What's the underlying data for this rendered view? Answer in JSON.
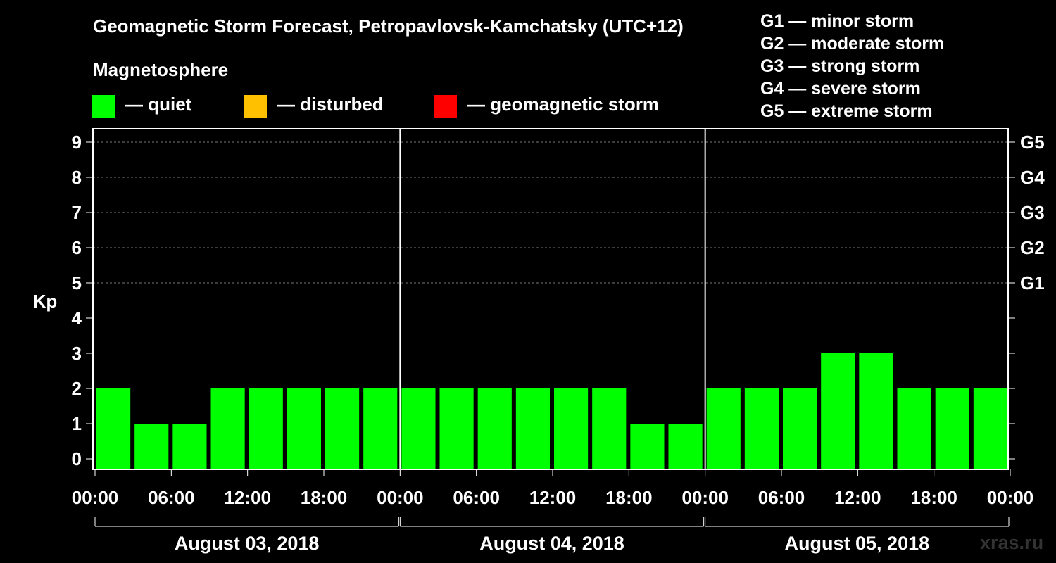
{
  "title": "Geomagnetic Storm Forecast, Petropavlovsk-Kamchatsky (UTC+12)",
  "magnetosphere_label": "Magnetosphere",
  "legend": [
    {
      "label": "— quiet",
      "color": "#00ff00"
    },
    {
      "label": "— disturbed",
      "color": "#ffc000"
    },
    {
      "label": "— geomagnetic storm",
      "color": "#ff0000"
    }
  ],
  "storm_levels": [
    {
      "label": "G1 — minor storm"
    },
    {
      "label": "G2 — moderate storm"
    },
    {
      "label": "G3 — strong storm"
    },
    {
      "label": "G4 — severe storm"
    },
    {
      "label": "G5 — extreme storm"
    }
  ],
  "watermark": "xras.ru",
  "chart_data": {
    "type": "bar",
    "ylabel": "Kp",
    "ylim": [
      0,
      9
    ],
    "yticks": [
      "0",
      "1",
      "2",
      "3",
      "4",
      "5",
      "6",
      "7",
      "8",
      "9"
    ],
    "right_ticks": [
      {
        "value": 5,
        "label": "G1"
      },
      {
        "value": 6,
        "label": "G2"
      },
      {
        "value": 7,
        "label": "G3"
      },
      {
        "value": 8,
        "label": "G4"
      },
      {
        "value": 9,
        "label": "G5"
      }
    ],
    "grid": "horizontal dashed at Kp 5-9",
    "days": [
      "August 03, 2018",
      "August 04, 2018",
      "August 05, 2018"
    ],
    "x_tick_labels": [
      "00:00",
      "06:00",
      "12:00",
      "18:00",
      "00:00",
      "06:00",
      "12:00",
      "18:00",
      "00:00",
      "06:00",
      "12:00",
      "18:00",
      "00:00"
    ],
    "interval_hours": 3,
    "values": [
      2,
      1,
      1,
      2,
      2,
      2,
      2,
      2,
      2,
      2,
      2,
      2,
      2,
      2,
      1,
      1,
      2,
      2,
      2,
      3,
      3,
      2,
      2,
      2
    ],
    "bar_color": "#00ff00"
  }
}
